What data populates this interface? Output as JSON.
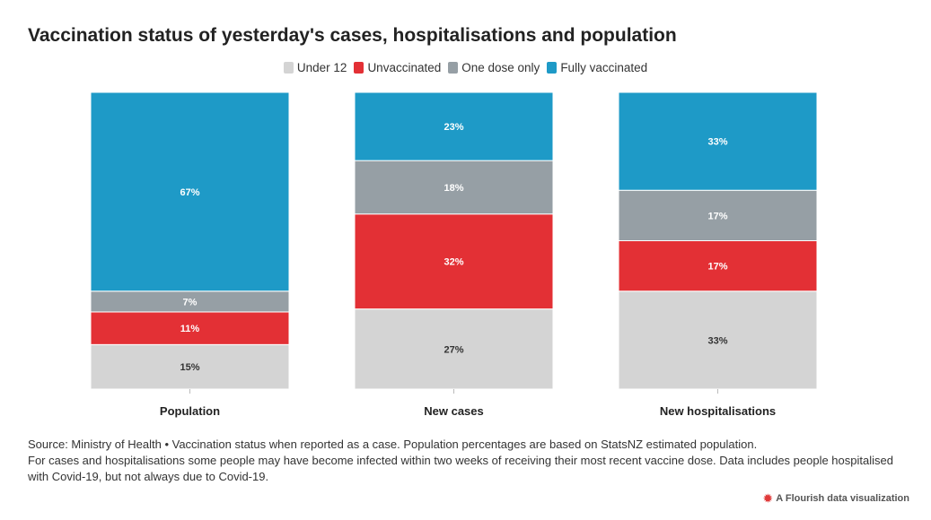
{
  "title": "Vaccination status of yesterday's cases, hospitalisations and population",
  "legend": [
    {
      "label": "Under 12",
      "color": "#d4d4d4"
    },
    {
      "label": "Unvaccinated",
      "color": "#e33035"
    },
    {
      "label": "One dose only",
      "color": "#969fa5"
    },
    {
      "label": "Fully vaccinated",
      "color": "#1e9ac7"
    }
  ],
  "chart_data": {
    "type": "bar",
    "stacked": true,
    "normalized": true,
    "categories": [
      "Population",
      "New cases",
      "New hospitalisations"
    ],
    "series": [
      {
        "name": "Under 12",
        "color": "#d4d4d4",
        "values": [
          15,
          27,
          33
        ],
        "labels": [
          "15%",
          "27%",
          "33%"
        ],
        "label_color": "#333333"
      },
      {
        "name": "Unvaccinated",
        "color": "#e33035",
        "values": [
          11,
          32,
          17
        ],
        "labels": [
          "11%",
          "32%",
          "17%"
        ],
        "label_color": "#ffffff"
      },
      {
        "name": "One dose only",
        "color": "#969fa5",
        "values": [
          7,
          18,
          17
        ],
        "labels": [
          "7%",
          "18%",
          "17%"
        ],
        "label_color": "#ffffff"
      },
      {
        "name": "Fully vaccinated",
        "color": "#1e9ac7",
        "values": [
          67,
          23,
          33
        ],
        "labels": [
          "67%",
          "23%",
          "33%"
        ],
        "label_color": "#ffffff"
      }
    ],
    "ylim": [
      0,
      100
    ],
    "legend_position": "top-center",
    "grid": false
  },
  "footer": {
    "line1": "Source: Ministry of Health • Vaccination status when reported as a case. Population percentages are based on StatsNZ estimated population.",
    "line2": "For cases and hospitalisations some people may have become infected within two weeks of receiving their most recent vaccine dose. Data includes people hospitalised with Covid-19, but not always due to Covid-19."
  },
  "credit": "A Flourish data visualization"
}
